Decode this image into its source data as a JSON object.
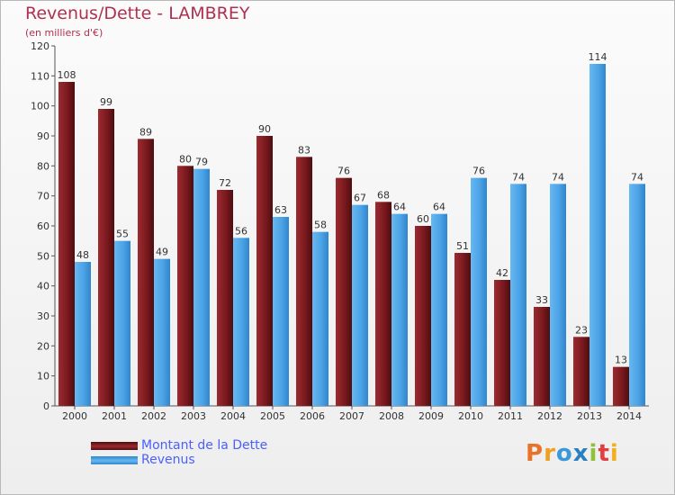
{
  "title": "Revenus/Dette - LAMBREY",
  "subtitle": "(en milliers d'€)",
  "logo": "Proxiti",
  "chart_data": {
    "type": "bar",
    "categories": [
      "2000",
      "2001",
      "2002",
      "2003",
      "2004",
      "2005",
      "2006",
      "2007",
      "2008",
      "2009",
      "2010",
      "2011",
      "2012",
      "2013",
      "2014"
    ],
    "series": [
      {
        "name": "Montant de la Dette",
        "color": "#7a1a1e",
        "values": [
          108,
          99,
          89,
          80,
          72,
          90,
          83,
          76,
          68,
          60,
          51,
          42,
          33,
          23,
          13
        ]
      },
      {
        "name": "Revenus",
        "color": "#4ca3e6",
        "values": [
          48,
          55,
          49,
          79,
          56,
          63,
          58,
          67,
          64,
          64,
          76,
          74,
          74,
          114,
          74
        ]
      }
    ],
    "ylim": [
      0,
      120
    ],
    "yticks": [
      0,
      10,
      20,
      30,
      40,
      50,
      60,
      70,
      80,
      90,
      100,
      110,
      120
    ],
    "grid": false,
    "legend": "bottom-left"
  }
}
